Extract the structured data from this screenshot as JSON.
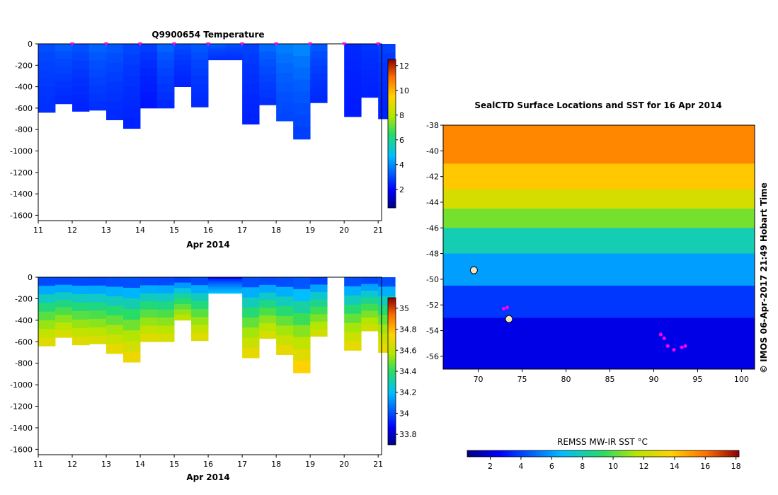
{
  "watermark": "© IMOS 06-Apr-2017 21:49 Hobart Time",
  "chart_data": [
    {
      "type": "heatmap",
      "title": "Q9900654  Temperature",
      "xlabel": "Apr 2014",
      "x_ticks": [
        "11",
        "12",
        "13",
        "14",
        "15",
        "16",
        "17",
        "18",
        "19",
        "20",
        "21"
      ],
      "y_ticks": [
        "0",
        "-200",
        "-400",
        "-600",
        "-800",
        "-1000",
        "-1200",
        "-1400",
        "-1600"
      ],
      "xlim": [
        11,
        21.1
      ],
      "ylim": [
        -1650,
        0
      ],
      "colorbar_ticks": [
        "2",
        "4",
        "6",
        "8",
        "10",
        "12"
      ],
      "colorbar_range": [
        0.5,
        12.5
      ],
      "profile_days": [
        11.0,
        11.5,
        12.0,
        12.5,
        13.0,
        13.5,
        14.0,
        14.5,
        15.0,
        15.5,
        16.0,
        16.5,
        17.0,
        17.5,
        18.0,
        18.5,
        19.0,
        19.5,
        20.0,
        20.5,
        21.0
      ],
      "profile_depths": [
        -640,
        -560,
        -630,
        -620,
        -710,
        -790,
        -600,
        -600,
        -400,
        -590,
        -150,
        -150,
        -750,
        -570,
        -720,
        -890,
        -550,
        null,
        -680,
        -500,
        -700
      ],
      "surface_values": [
        3.2,
        3.5,
        3.3,
        3.6,
        3.4,
        3.1,
        3.0,
        3.6,
        3.2,
        3.4,
        3.5,
        3.3,
        3.0,
        3.7,
        4.0,
        4.2,
        3.4,
        null,
        2.6,
        2.8,
        3.0
      ],
      "deep_values": [
        2.6,
        2.5,
        2.4,
        2.6,
        2.5,
        2.4,
        2.2,
        2.5,
        2.4,
        2.5,
        2.6,
        2.6,
        2.4,
        2.6,
        2.9,
        2.8,
        2.5,
        null,
        2.3,
        2.4,
        2.4
      ],
      "marker_days": [
        12,
        13,
        14,
        15,
        16,
        17,
        18,
        19,
        20,
        21
      ]
    },
    {
      "type": "heatmap",
      "title": "",
      "xlabel": "Apr 2014",
      "x_ticks": [
        "11",
        "12",
        "13",
        "14",
        "15",
        "16",
        "17",
        "18",
        "19",
        "20",
        "21"
      ],
      "y_ticks": [
        "0",
        "-200",
        "-400",
        "-600",
        "-800",
        "-1000",
        "-1200",
        "-1400",
        "-1600"
      ],
      "xlim": [
        11,
        21.1
      ],
      "ylim": [
        -1650,
        0
      ],
      "colorbar_ticks": [
        "33.8",
        "34",
        "34.2",
        "34.4",
        "34.6",
        "34.8",
        "35"
      ],
      "colorbar_range": [
        33.7,
        35.1
      ],
      "profile_days": [
        11.0,
        11.5,
        12.0,
        12.5,
        13.0,
        13.5,
        14.0,
        14.5,
        15.0,
        15.5,
        16.0,
        16.5,
        17.0,
        17.5,
        18.0,
        18.5,
        19.0,
        19.5,
        20.0,
        20.5,
        21.0
      ],
      "profile_depths": [
        -640,
        -560,
        -630,
        -620,
        -710,
        -790,
        -600,
        -600,
        -400,
        -590,
        -150,
        -150,
        -750,
        -570,
        -720,
        -890,
        -550,
        null,
        -680,
        -500,
        -700
      ],
      "surface_values": [
        33.8,
        33.8,
        33.8,
        33.8,
        33.8,
        33.8,
        33.8,
        33.8,
        33.8,
        33.8,
        33.8,
        33.8,
        33.8,
        33.8,
        33.8,
        33.8,
        33.8,
        null,
        33.8,
        33.8,
        33.8
      ],
      "deep_values": [
        34.7,
        34.68,
        34.7,
        34.68,
        34.72,
        34.74,
        34.7,
        34.68,
        34.62,
        34.7,
        34.2,
        34.2,
        34.72,
        34.68,
        34.72,
        34.78,
        34.66,
        null,
        34.72,
        34.66,
        34.72
      ]
    },
    {
      "type": "heatmap",
      "title": "SealCTD Surface Locations and SST for 16 Apr 2014",
      "x_ticks": [
        "70",
        "75",
        "80",
        "85",
        "90",
        "95",
        "100"
      ],
      "y_ticks": [
        "-38",
        "-40",
        "-42",
        "-44",
        "-46",
        "-48",
        "-50",
        "-52",
        "-54",
        "-56"
      ],
      "xlim": [
        66,
        101.5
      ],
      "ylim": [
        -57,
        -38
      ],
      "colorbar_label": "REMSS MW-IR SST °C",
      "colorbar_ticks": [
        "2",
        "4",
        "6",
        "8",
        "10",
        "12",
        "14",
        "16",
        "18"
      ],
      "colorbar_range": [
        0.5,
        18.2
      ],
      "sst_bands": [
        {
          "lat_top": -38,
          "lat_bottom": -41,
          "sst": 15.5
        },
        {
          "lat_top": -41,
          "lat_bottom": -43,
          "sst": 14.0
        },
        {
          "lat_top": -43,
          "lat_bottom": -44.5,
          "sst": 12.5
        },
        {
          "lat_top": -44.5,
          "lat_bottom": -46,
          "sst": 10.5
        },
        {
          "lat_top": -46,
          "lat_bottom": -48,
          "sst": 8.0
        },
        {
          "lat_top": -48,
          "lat_bottom": -50.5,
          "sst": 6.0
        },
        {
          "lat_top": -50.5,
          "lat_bottom": -53,
          "sst": 3.8
        },
        {
          "lat_top": -53,
          "lat_bottom": -57,
          "sst": 2.2
        }
      ],
      "island_points": [
        {
          "lon": 69.5,
          "lat": -49.3
        },
        {
          "lon": 73.5,
          "lat": -53.1
        }
      ],
      "seal_locations": [
        {
          "lon": 72.9,
          "lat": -52.3
        },
        {
          "lon": 73.3,
          "lat": -52.2
        },
        {
          "lon": 90.8,
          "lat": -54.3
        },
        {
          "lon": 91.2,
          "lat": -54.6
        },
        {
          "lon": 91.6,
          "lat": -55.2
        },
        {
          "lon": 92.3,
          "lat": -55.5
        },
        {
          "lon": 93.6,
          "lat": -55.2
        },
        {
          "lon": 93.2,
          "lat": -55.3
        }
      ]
    }
  ]
}
